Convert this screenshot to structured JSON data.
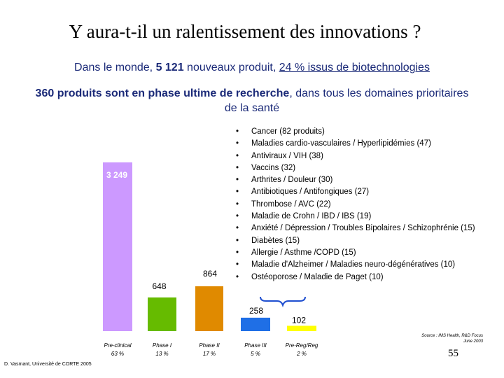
{
  "title": "Y aura-t-il un ralentissement des innovations ?",
  "subtitle1": {
    "prefix": "Dans le monde, ",
    "count": "5 121",
    "middle": " nouveaux produit, ",
    "pct": "24 % issus de biotechnologies"
  },
  "subtitle2": {
    "bold": "360 produits sont en phase ultime de recherche",
    "rest": ", dans tous les domaines prioritaires de la santé"
  },
  "chart_data": {
    "type": "bar",
    "title": "",
    "categories": [
      "Pre-clinical",
      "Phase I",
      "Phase II",
      "Phase III",
      "Pre-Reg/Reg"
    ],
    "percentages": [
      "63 %",
      "13 %",
      "17 %",
      "5 %",
      "2 %"
    ],
    "values": [
      3249,
      648,
      864,
      258,
      102
    ],
    "value_labels": [
      "3 249",
      "648",
      "864",
      "258",
      "102"
    ],
    "colors": [
      "#cc99ff",
      "#66bb00",
      "#e08a00",
      "#1f6fe6",
      "#ffff00"
    ],
    "ylim": [
      0,
      3249
    ],
    "grid": false,
    "legend": "none"
  },
  "diseases": [
    "Cancer (82 produits)",
    "Maladies cardio-vasculaires / Hyperlipidémies (47)",
    "Antiviraux / VIH (38)",
    "Vaccins (32)",
    "Arthrites / Douleur (30)",
    "Antibiotiques / Antifongiques (27)",
    "Thrombose / AVC (22)",
    "Maladie de Crohn / IBD / IBS (19)",
    "Anxiété / Dépression / Troubles Bipolaires / Schizophrénie (15)",
    "Diabètes (15)",
    "Allergie / Asthme /COPD (15)",
    "Maladie d'Alzheimer / Maladies neuro-dégénératives (10)",
    "Ostéoporose / Maladie de Paget (10)"
  ],
  "bullet": "•",
  "source_line1": "Source : IMS Health, R&D Focus",
  "source_line2": "June 2003",
  "page_number": "55",
  "author": "D. Vasmant,  Université de CORTE 2005",
  "brace_color": "#1f4fd0"
}
